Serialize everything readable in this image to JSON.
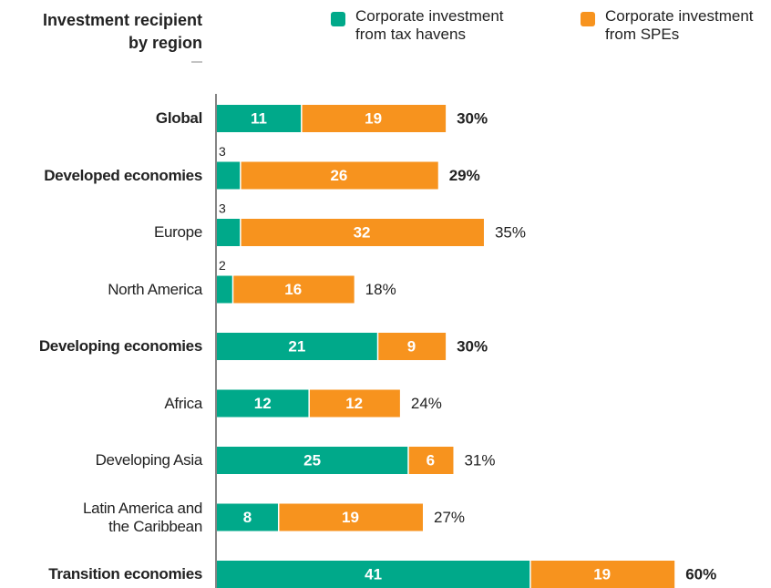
{
  "chart_data": {
    "type": "stacked-bar",
    "title": "Investment recipient\nby region",
    "categories": [
      "Global",
      "Developed economies",
      "Europe",
      "North America",
      "Developing economies",
      "Africa",
      "Developing Asia",
      "Latin America and\nthe Caribbean",
      "Transition economies"
    ],
    "emphasis": [
      true,
      true,
      false,
      false,
      true,
      false,
      false,
      false,
      true
    ],
    "series": [
      {
        "name": "Corporate investment\nfrom tax havens",
        "color": "#00a98a",
        "values": [
          11,
          3,
          3,
          2,
          21,
          12,
          25,
          8,
          41
        ]
      },
      {
        "name": "Corporate investment\nfrom SPEs",
        "color": "#f7931e",
        "values": [
          19,
          26,
          32,
          16,
          9,
          12,
          6,
          19,
          19
        ]
      }
    ],
    "totals": {
      "values": [
        30,
        29,
        35,
        18,
        30,
        24,
        31,
        27,
        60
      ],
      "value_labels": [
        "30%",
        "29%",
        "35%",
        "18%",
        "30%",
        "24%",
        "31%",
        "27%",
        "60%"
      ]
    }
  }
}
